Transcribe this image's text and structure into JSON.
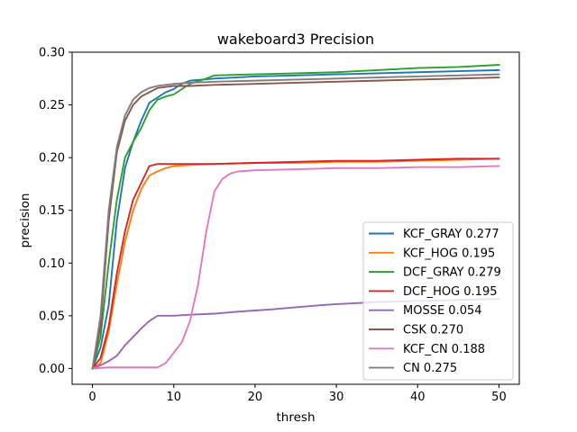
{
  "chart_data": {
    "type": "line",
    "title": "wakeboard3 Precision",
    "xlabel": "thresh",
    "ylabel": "precision",
    "xlim": [
      -2.5,
      52.5
    ],
    "ylim": [
      -0.015,
      0.3
    ],
    "xticks": [
      0,
      10,
      20,
      30,
      40,
      50
    ],
    "xtick_labels": [
      "0",
      "10",
      "20",
      "30",
      "40",
      "50"
    ],
    "yticks": [
      0.0,
      0.05,
      0.1,
      0.15,
      0.2,
      0.25,
      0.3
    ],
    "ytick_labels": [
      "0.00",
      "0.05",
      "0.10",
      "0.15",
      "0.20",
      "0.25",
      "0.30"
    ],
    "grid": false,
    "legend_position": "lower-right",
    "series": [
      {
        "name": "KCF_GRAY 0.277",
        "color": "#1f77b4",
        "x": [
          0,
          1,
          2,
          3,
          4,
          5,
          6,
          7,
          8,
          9,
          10,
          11,
          12,
          15,
          20,
          25,
          30,
          35,
          40,
          45,
          50
        ],
        "y": [
          0.0,
          0.02,
          0.06,
          0.14,
          0.19,
          0.215,
          0.235,
          0.252,
          0.257,
          0.262,
          0.265,
          0.27,
          0.273,
          0.275,
          0.277,
          0.278,
          0.279,
          0.28,
          0.281,
          0.282,
          0.283
        ]
      },
      {
        "name": "KCF_HOG 0.195",
        "color": "#ff7f0e",
        "x": [
          0,
          1,
          2,
          3,
          4,
          5,
          6,
          7,
          8,
          9,
          10,
          12,
          15,
          20,
          25,
          30,
          35,
          40,
          45,
          50
        ],
        "y": [
          0.0,
          0.005,
          0.035,
          0.08,
          0.12,
          0.15,
          0.17,
          0.183,
          0.187,
          0.19,
          0.192,
          0.193,
          0.194,
          0.195,
          0.195,
          0.196,
          0.196,
          0.197,
          0.198,
          0.199
        ]
      },
      {
        "name": "DCF_GRAY 0.279",
        "color": "#2ca02c",
        "x": [
          0,
          1,
          2,
          3,
          4,
          5,
          6,
          7,
          8,
          9,
          10,
          12,
          14,
          15,
          20,
          25,
          30,
          35,
          40,
          45,
          50
        ],
        "y": [
          0.0,
          0.03,
          0.1,
          0.16,
          0.2,
          0.215,
          0.228,
          0.245,
          0.255,
          0.258,
          0.26,
          0.27,
          0.275,
          0.278,
          0.279,
          0.28,
          0.281,
          0.283,
          0.285,
          0.286,
          0.288
        ]
      },
      {
        "name": "DCF_HOG 0.195",
        "color": "#d62728",
        "x": [
          0,
          1,
          2,
          3,
          4,
          5,
          6,
          7,
          8,
          10,
          12,
          15,
          20,
          25,
          30,
          35,
          40,
          45,
          50
        ],
        "y": [
          0.0,
          0.01,
          0.04,
          0.09,
          0.13,
          0.16,
          0.176,
          0.192,
          0.194,
          0.194,
          0.194,
          0.194,
          0.195,
          0.196,
          0.197,
          0.197,
          0.198,
          0.199,
          0.199
        ]
      },
      {
        "name": "MOSSE 0.054",
        "color": "#9467bd",
        "x": [
          0,
          1,
          2,
          3,
          4,
          5,
          6,
          7,
          8,
          9,
          10,
          12,
          15,
          18,
          20,
          22,
          25,
          28,
          30,
          35,
          40,
          45,
          50
        ],
        "y": [
          0.0,
          0.003,
          0.007,
          0.012,
          0.022,
          0.03,
          0.038,
          0.045,
          0.05,
          0.05,
          0.05,
          0.051,
          0.052,
          0.054,
          0.055,
          0.056,
          0.058,
          0.06,
          0.061,
          0.063,
          0.064,
          0.065,
          0.066
        ]
      },
      {
        "name": "CSK 0.270",
        "color": "#8c564b",
        "x": [
          0,
          1,
          2,
          3,
          4,
          5,
          6,
          7,
          8,
          10,
          12,
          15,
          20,
          25,
          30,
          35,
          40,
          45,
          50
        ],
        "y": [
          0.0,
          0.04,
          0.14,
          0.205,
          0.235,
          0.25,
          0.258,
          0.262,
          0.266,
          0.268,
          0.268,
          0.269,
          0.27,
          0.271,
          0.272,
          0.273,
          0.274,
          0.275,
          0.276
        ]
      },
      {
        "name": "KCF_CN 0.188",
        "color": "#e377c2",
        "x": [
          0,
          2,
          4,
          6,
          8,
          9,
          10,
          11,
          12,
          13,
          14,
          15,
          16,
          17,
          18,
          20,
          25,
          30,
          35,
          40,
          45,
          50
        ],
        "y": [
          0.0,
          0.001,
          0.001,
          0.001,
          0.001,
          0.005,
          0.015,
          0.025,
          0.045,
          0.08,
          0.13,
          0.168,
          0.18,
          0.185,
          0.187,
          0.188,
          0.189,
          0.19,
          0.19,
          0.191,
          0.191,
          0.192
        ]
      },
      {
        "name": "CN 0.275",
        "color": "#7f7f7f",
        "x": [
          0,
          1,
          2,
          3,
          4,
          5,
          6,
          7,
          8,
          10,
          12,
          15,
          20,
          25,
          30,
          35,
          40,
          45,
          50
        ],
        "y": [
          0.0,
          0.05,
          0.15,
          0.21,
          0.24,
          0.255,
          0.262,
          0.266,
          0.268,
          0.27,
          0.271,
          0.272,
          0.273,
          0.274,
          0.275,
          0.276,
          0.277,
          0.278,
          0.279
        ]
      }
    ]
  }
}
